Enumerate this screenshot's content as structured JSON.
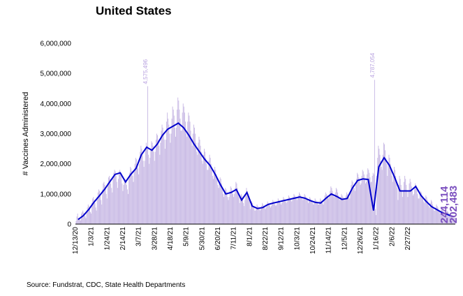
{
  "chart_data": {
    "type": "bar",
    "title": "United States",
    "ylabel": "# Vaccines Administered",
    "ylim": [
      0,
      6000000
    ],
    "yticks": [
      0,
      1000000,
      2000000,
      3000000,
      4000000,
      5000000,
      6000000
    ],
    "ytick_labels": [
      "0",
      "1,000,000",
      "2,000,000",
      "3,000,000",
      "4,000,000",
      "5,000,000",
      "6,000,000"
    ],
    "xtick_labels": [
      "12/13/20",
      "1/3/21",
      "1/24/21",
      "2/14/21",
      "3/7/21",
      "3/28/21",
      "4/18/21",
      "5/9/21",
      "5/30/21",
      "6/20/21",
      "7/11/21",
      "8/1/21",
      "8/22/21",
      "9/12/21",
      "10/3/21",
      "10/24/21",
      "11/14/21",
      "12/5/21",
      "12/26/21",
      "1/16/22",
      "2/6/22",
      "2/27/22"
    ],
    "series": [
      {
        "type": "bar",
        "color": "#cbbde6",
        "weekly_daily_values": [
          [
            100000,
            250000,
            350000,
            200000,
            180000,
            150000,
            120000
          ],
          [
            350000,
            400000,
            450000,
            380000,
            300000,
            260000,
            200000
          ],
          [
            450000,
            550000,
            650000,
            600000,
            500000,
            400000,
            350000
          ],
          [
            700000,
            850000,
            900000,
            800000,
            700000,
            550000,
            450000
          ],
          [
            900000,
            1050000,
            1150000,
            1100000,
            950000,
            800000,
            650000
          ],
          [
            1150000,
            1350000,
            1400000,
            1300000,
            1200000,
            1000000,
            850000
          ],
          [
            1350000,
            1550000,
            1600000,
            1500000,
            1350000,
            1200000,
            1050000
          ],
          [
            1500000,
            1700000,
            1800000,
            1750000,
            1600000,
            1400000,
            1200000
          ],
          [
            1500000,
            1750000,
            1800000,
            1700000,
            1600000,
            1350000,
            1100000
          ],
          [
            1300000,
            1450000,
            1500000,
            1400000,
            1300000,
            1150000,
            1000000
          ],
          [
            1500000,
            1700000,
            1900000,
            1850000,
            1750000,
            1600000,
            1400000
          ],
          [
            1800000,
            2000000,
            2200000,
            2150000,
            2000000,
            1850000,
            1650000
          ],
          [
            2000000,
            2400000,
            2600000,
            2500000,
            2300000,
            2100000,
            1900000
          ],
          [
            2100000,
            2500000,
            2700000,
            2600000,
            4575496,
            2300000,
            2000000
          ],
          [
            2200000,
            2500000,
            2750000,
            2700000,
            2600000,
            2400000,
            2100000
          ],
          [
            2400000,
            2800000,
            3000000,
            2950000,
            2800000,
            2600000,
            2300000
          ],
          [
            2700000,
            3100000,
            3300000,
            3200000,
            3000000,
            2800000,
            2500000
          ],
          [
            2800000,
            3400000,
            3700000,
            3500000,
            3300000,
            3000000,
            2700000
          ],
          [
            3000000,
            3500000,
            3900000,
            3800000,
            3600000,
            3200000,
            2900000
          ],
          [
            3200000,
            3800000,
            4200000,
            4100000,
            3800000,
            3500000,
            3100000
          ],
          [
            3100000,
            3700000,
            4000000,
            3900000,
            3700000,
            3400000,
            3000000
          ],
          [
            2900000,
            3400000,
            3700000,
            3600000,
            3400000,
            3100000,
            2800000
          ],
          [
            2600000,
            3000000,
            3300000,
            3200000,
            3000000,
            2700000,
            2400000
          ],
          [
            2300000,
            2700000,
            2900000,
            2800000,
            2600000,
            2400000,
            2100000
          ],
          [
            2000000,
            2300000,
            2500000,
            2400000,
            2200000,
            2000000,
            1800000
          ],
          [
            1800000,
            2100000,
            2300000,
            2200000,
            2000000,
            1800000,
            1600000
          ],
          [
            1500000,
            1800000,
            1900000,
            1800000,
            1650000,
            1500000,
            1300000
          ],
          [
            1200000,
            1400000,
            1550000,
            1500000,
            1350000,
            1200000,
            1000000
          ],
          [
            900000,
            1100000,
            1200000,
            1150000,
            1050000,
            900000,
            800000
          ],
          [
            900000,
            1100000,
            1250000,
            1200000,
            1100000,
            1000000,
            900000
          ],
          [
            1000000,
            1200000,
            1400000,
            1350000,
            1200000,
            1050000,
            900000
          ],
          [
            700000,
            850000,
            1000000,
            950000,
            850000,
            700000,
            600000
          ],
          [
            800000,
            1000000,
            1200000,
            1100000,
            1000000,
            900000,
            800000
          ],
          [
            500000,
            650000,
            750000,
            700000,
            600000,
            550000,
            450000
          ],
          [
            450000,
            550000,
            650000,
            600000,
            550000,
            500000,
            450000
          ],
          [
            500000,
            600000,
            700000,
            650000,
            600000,
            550000,
            500000
          ],
          [
            550000,
            650000,
            750000,
            700000,
            650000,
            600000,
            550000
          ],
          [
            600000,
            700000,
            800000,
            750000,
            700000,
            650000,
            600000
          ],
          [
            650000,
            750000,
            850000,
            800000,
            750000,
            700000,
            650000
          ],
          [
            700000,
            800000,
            900000,
            850000,
            800000,
            750000,
            700000
          ],
          [
            750000,
            850000,
            950000,
            900000,
            850000,
            800000,
            750000
          ],
          [
            800000,
            900000,
            1000000,
            950000,
            900000,
            850000,
            800000
          ],
          [
            850000,
            950000,
            1050000,
            1000000,
            950000,
            900000,
            850000
          ],
          [
            800000,
            900000,
            1000000,
            950000,
            900000,
            850000,
            800000
          ],
          [
            700000,
            800000,
            900000,
            850000,
            800000,
            750000,
            700000
          ],
          [
            650000,
            750000,
            850000,
            800000,
            750000,
            700000,
            650000
          ],
          [
            650000,
            750000,
            850000,
            800000,
            750000,
            700000,
            650000
          ],
          [
            800000,
            950000,
            1050000,
            1000000,
            950000,
            900000,
            850000
          ],
          [
            950000,
            1100000,
            1250000,
            1200000,
            1100000,
            1000000,
            900000
          ],
          [
            900000,
            1050000,
            1200000,
            1150000,
            1050000,
            950000,
            850000
          ],
          [
            800000,
            900000,
            1000000,
            950000,
            900000,
            850000,
            800000
          ],
          [
            850000,
            950000,
            1050000,
            1000000,
            950000,
            900000,
            850000
          ],
          [
            1100000,
            1300000,
            1450000,
            1400000,
            1300000,
            1200000,
            1100000
          ],
          [
            1300000,
            1500000,
            1700000,
            1650000,
            1550000,
            1450000,
            1300000
          ],
          [
            1350000,
            1600000,
            1800000,
            1750000,
            1650000,
            1500000,
            1350000
          ],
          [
            1400000,
            1650000,
            1850000,
            1800000,
            1700000,
            1550000,
            1400000
          ],
          [
            1400000,
            1600000,
            1700000,
            1650000,
            4787054,
            500000,
            300000
          ],
          [
            1600000,
            2200000,
            2600000,
            2500000,
            2300000,
            2100000,
            1900000
          ],
          [
            1800000,
            2300000,
            2700000,
            2650000,
            2450000,
            2200000,
            2000000
          ],
          [
            1600000,
            2000000,
            2300000,
            2200000,
            2000000,
            1800000,
            1600000
          ],
          [
            1400000,
            1700000,
            1900000,
            1800000,
            1600000,
            1400000,
            1200000
          ],
          [
            800000,
            1300000,
            1600000,
            1500000,
            1300000,
            1100000,
            900000
          ],
          [
            1100000,
            1400000,
            1600000,
            1500000,
            1300000,
            1100000,
            900000
          ],
          [
            1100000,
            1350000,
            1500000,
            1400000,
            1250000,
            1100000,
            950000
          ],
          [
            1000000,
            1200000,
            1350000,
            1300000,
            1150000,
            1000000,
            850000
          ],
          [
            850000,
            1000000,
            1100000,
            1050000,
            950000,
            850000,
            750000
          ],
          [
            700000,
            850000,
            950000,
            900000,
            800000,
            700000,
            600000
          ],
          [
            550000,
            700000,
            800000,
            750000,
            650000,
            550000,
            450000
          ],
          [
            450000,
            550000,
            650000,
            600000,
            550000,
            450000,
            400000
          ],
          [
            350000,
            450000,
            550000,
            500000,
            450000,
            400000,
            350000
          ],
          [
            300000,
            380000,
            450000,
            420000,
            380000,
            330000,
            300000
          ],
          [
            244114,
            260000,
            300000,
            280000,
            250000,
            220000,
            202483
          ]
        ]
      },
      {
        "type": "line",
        "color": "#0000cc",
        "values": [
          150000,
          280000,
          480000,
          720000,
          930000,
          1150000,
          1400000,
          1650000,
          1700000,
          1400000,
          1650000,
          1850000,
          2300000,
          2550000,
          2450000,
          2650000,
          2950000,
          3150000,
          3250000,
          3350000,
          3200000,
          2950000,
          2650000,
          2400000,
          2150000,
          1950000,
          1650000,
          1300000,
          1000000,
          1050000,
          1150000,
          800000,
          1050000,
          600000,
          520000,
          550000,
          650000,
          700000,
          740000,
          780000,
          820000,
          860000,
          900000,
          860000,
          780000,
          720000,
          700000,
          860000,
          1000000,
          920000,
          820000,
          850000,
          1200000,
          1450000,
          1500000,
          1480000,
          450000,
          1900000,
          2200000,
          1950000,
          1550000,
          1100000,
          1100000,
          1100000,
          1250000,
          950000,
          750000,
          580000,
          480000,
          380000,
          320000,
          250000
        ]
      }
    ],
    "annotations": {
      "peak_labels": [
        "4,575,496",
        "4,787,054"
      ],
      "last_values": [
        "244,114",
        "202,483"
      ]
    }
  },
  "source_text": "Source: Fundstrat, CDC, State Health Departments"
}
